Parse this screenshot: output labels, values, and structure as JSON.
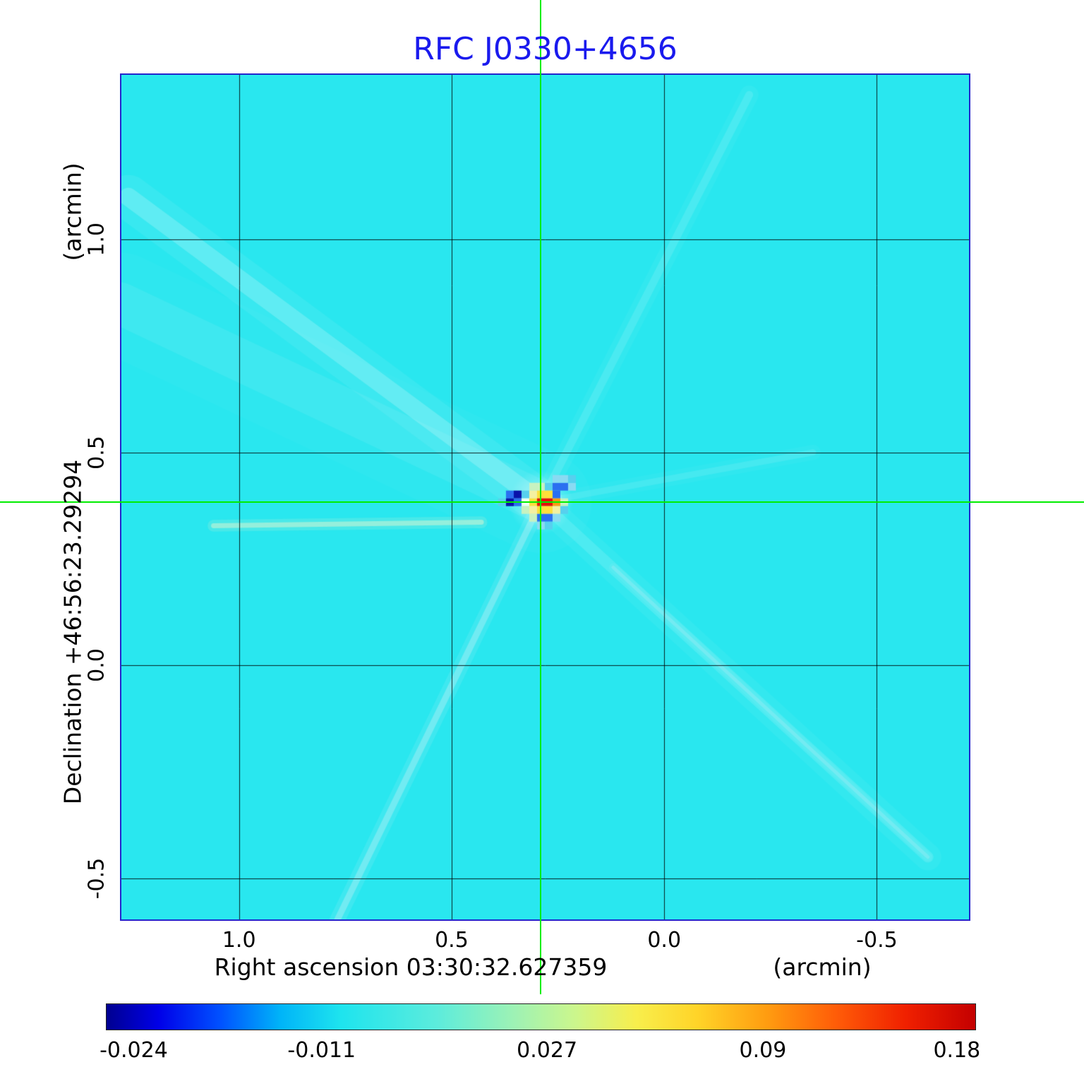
{
  "title": {
    "text": "RFC J0330+4656",
    "color": "#1a1aee"
  },
  "axes": {
    "x": {
      "label": "Right ascension  03:30:32.627359",
      "unit": "(arcmin)",
      "tick_labels": [
        "1.0",
        "0.5",
        "0.0",
        "-0.5"
      ]
    },
    "y": {
      "label": "Declination  +46:56:23.29294",
      "unit": "(arcmin)",
      "tick_labels": [
        "1.0",
        "0.5",
        "0.0",
        "-0.5"
      ]
    }
  },
  "colorbar": {
    "tick_labels": [
      "-0.024",
      "-0.011",
      "0.027",
      "0.09",
      "0.18"
    ]
  },
  "colors": {
    "frame": "#2424cc",
    "crosshair": "#00ee00",
    "background_value": "#29e7ef"
  },
  "chart_data": {
    "type": "heatmap",
    "title": "RFC J0330+4656",
    "xlabel": "Right ascension  03:30:32.627359  (arcmin)",
    "ylabel": "Declination  +46:56:23.29294  (arcmin)",
    "x_ticks": [
      1.0,
      0.5,
      0.0,
      -0.5
    ],
    "y_ticks": [
      1.0,
      0.5,
      0.0,
      -0.5
    ],
    "x_range": [
      1.28,
      -0.72
    ],
    "y_range": [
      -0.6,
      1.39
    ],
    "grid": true,
    "crosshair": {
      "x": 0.29,
      "y": 0.383
    },
    "peak": {
      "x": 0.29,
      "y": 0.383,
      "value": 0.18
    },
    "background_value_color": "#29e7ef",
    "colorbar": {
      "min": -0.024,
      "max": 0.18,
      "ticks": [
        -0.024,
        -0.011,
        0.027,
        0.09,
        0.18
      ],
      "tick_positions": [
        0.032,
        0.248,
        0.507,
        0.755,
        0.978
      ],
      "stops": [
        {
          "pos": 0.0,
          "color": "#000090"
        },
        {
          "pos": 0.06,
          "color": "#0000e8"
        },
        {
          "pos": 0.13,
          "color": "#0050ff"
        },
        {
          "pos": 0.2,
          "color": "#00b4f8"
        },
        {
          "pos": 0.27,
          "color": "#1ee4ee"
        },
        {
          "pos": 0.38,
          "color": "#5cecdc"
        },
        {
          "pos": 0.47,
          "color": "#9ef2b4"
        },
        {
          "pos": 0.54,
          "color": "#ccf68c"
        },
        {
          "pos": 0.61,
          "color": "#f8ee4c"
        },
        {
          "pos": 0.68,
          "color": "#ffd428"
        },
        {
          "pos": 0.76,
          "color": "#ff9c10"
        },
        {
          "pos": 0.84,
          "color": "#ff5c08"
        },
        {
          "pos": 0.92,
          "color": "#f02000"
        },
        {
          "pos": 1.0,
          "color": "#c40000"
        }
      ]
    },
    "rays": [
      {
        "x1": 0.29,
        "y1": 0.383,
        "x2": 1.28,
        "y2": 0.85,
        "color": "#ffffff",
        "alpha": 0.08,
        "width": 60
      },
      {
        "x1": 0.29,
        "y1": 0.383,
        "x2": 1.26,
        "y2": 1.1,
        "color": "#ffffff",
        "alpha": 0.2,
        "width": 26
      },
      {
        "x1": 0.29,
        "y1": 0.383,
        "x2": -0.62,
        "y2": -0.45,
        "color": "#ffffff",
        "alpha": 0.13,
        "width": 16
      },
      {
        "x1": 0.12,
        "y1": 0.23,
        "x2": -0.62,
        "y2": -0.45,
        "color": "#a8ecf4",
        "alpha": 0.35,
        "width": 5
      },
      {
        "x1": 0.29,
        "y1": 0.383,
        "x2": -0.2,
        "y2": 1.34,
        "color": "#ffffff",
        "alpha": 0.12,
        "width": 11
      },
      {
        "x1": 0.29,
        "y1": 0.383,
        "x2": 0.77,
        "y2": -0.6,
        "color": "#bfeff6",
        "alpha": 0.4,
        "width": 9
      },
      {
        "x1": 1.06,
        "y1": 0.328,
        "x2": 0.43,
        "y2": 0.336,
        "color": "#dff6cf",
        "alpha": 0.5,
        "width": 7
      },
      {
        "x1": 0.29,
        "y1": 0.383,
        "x2": -0.35,
        "y2": 0.5,
        "color": "#ffffff",
        "alpha": 0.1,
        "width": 9
      }
    ],
    "source": {
      "palette": {
        "R": "#e11009",
        "O": "#ff9a12",
        "Y": "#ffe03a",
        "y": "#f4f0a0",
        "W": "#effff4",
        "G": "#c8f2c0",
        "L": "#8adaf2",
        "c": "#57d0ee",
        "B": "#2b6ff0",
        "N": "#0a12aa"
      },
      "cells": [
        [
          -5,
          0,
          "c"
        ],
        [
          -4,
          -1,
          "B"
        ],
        [
          -3,
          -1,
          "N"
        ],
        [
          -4,
          0,
          "N"
        ],
        [
          -3,
          0,
          "B"
        ],
        [
          -2,
          -1,
          "c"
        ],
        [
          -2,
          0,
          "W"
        ],
        [
          -2,
          1,
          "G"
        ],
        [
          -1,
          -2,
          "G"
        ],
        [
          0,
          -2,
          "G"
        ],
        [
          1,
          -2,
          "c"
        ],
        [
          -1,
          -1,
          "y"
        ],
        [
          0,
          -1,
          "Y"
        ],
        [
          1,
          -1,
          "Y"
        ],
        [
          2,
          -1,
          "B"
        ],
        [
          -1,
          0,
          "Y"
        ],
        [
          0,
          0,
          "R"
        ],
        [
          1,
          0,
          "R"
        ],
        [
          2,
          0,
          "O"
        ],
        [
          3,
          0,
          "G"
        ],
        [
          -1,
          1,
          "y"
        ],
        [
          0,
          1,
          "Y"
        ],
        [
          1,
          1,
          "Y"
        ],
        [
          2,
          1,
          "y"
        ],
        [
          3,
          1,
          "c"
        ],
        [
          -1,
          2,
          "G"
        ],
        [
          0,
          2,
          "B"
        ],
        [
          1,
          2,
          "B"
        ],
        [
          2,
          2,
          "L"
        ],
        [
          0,
          3,
          "L"
        ],
        [
          1,
          3,
          "c"
        ],
        [
          2,
          -2,
          "B"
        ],
        [
          3,
          -2,
          "B"
        ],
        [
          4,
          -2,
          "L"
        ],
        [
          2,
          -3,
          "L"
        ],
        [
          3,
          -3,
          "L"
        ],
        [
          4,
          -3,
          "c"
        ]
      ]
    }
  }
}
